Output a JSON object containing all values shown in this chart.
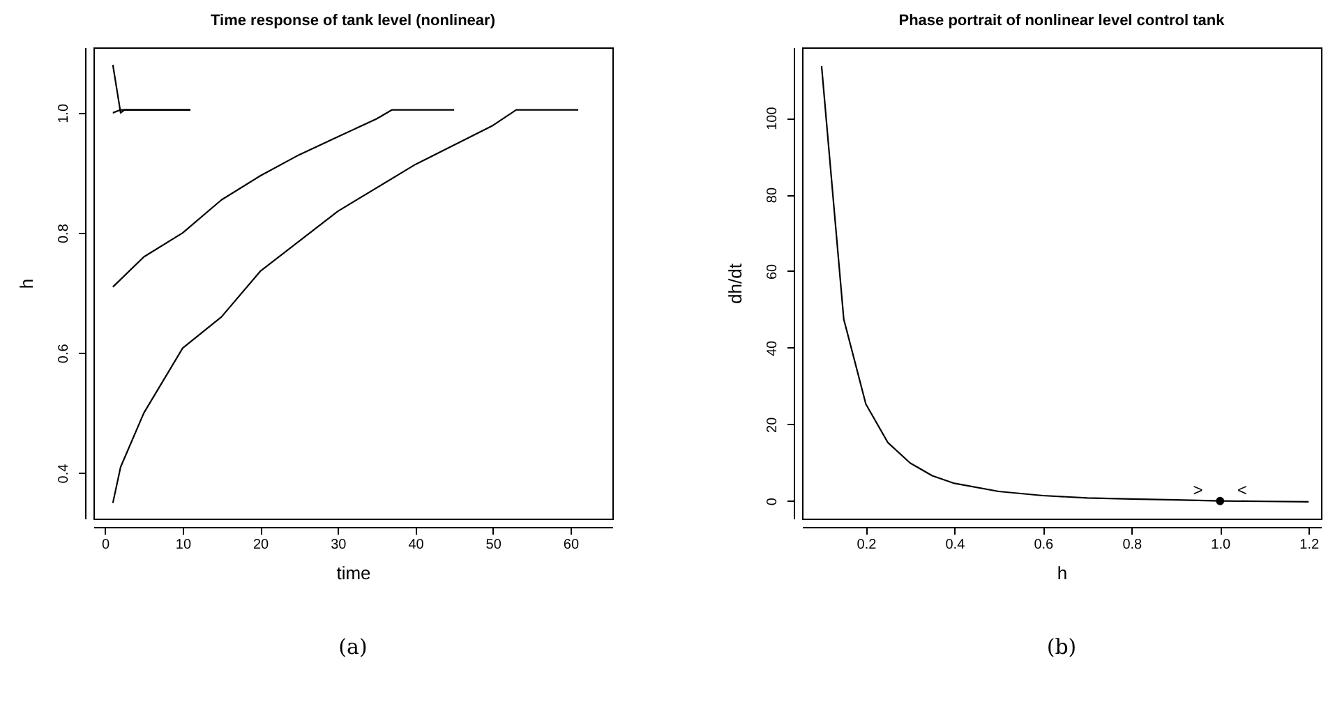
{
  "chart_data": [
    {
      "type": "line",
      "title": "Time response of tank level (nonlinear)",
      "xlabel": "time",
      "ylabel": "h",
      "xlim": [
        -1.5,
        65.4
      ],
      "ylim": [
        0.324,
        1.109
      ],
      "xticks": [
        0,
        10,
        20,
        30,
        40,
        50,
        60
      ],
      "yticks": [
        0.4,
        0.6,
        0.8,
        {
          "value": 1.0,
          "label": "1.0"
        }
      ],
      "grid": false,
      "marker": "none",
      "line_style": "solid",
      "series": [
        {
          "color": "#000000",
          "x": [
            1,
            2,
            2.5,
            11
          ],
          "values": [
            1.08,
            1.0,
            1.005,
            1.005
          ]
        },
        {
          "color": "#000000",
          "x": [
            1,
            2,
            11
          ],
          "values": [
            1.0,
            1.005,
            1.005
          ]
        },
        {
          "color": "#000000",
          "x": [
            1,
            5,
            10,
            15,
            20,
            25,
            30,
            35,
            37,
            45
          ],
          "values": [
            0.71,
            0.76,
            0.8,
            0.855,
            0.895,
            0.93,
            0.96,
            0.99,
            1.005,
            1.005
          ]
        },
        {
          "color": "#000000",
          "x": [
            1,
            2,
            5,
            10,
            15,
            20,
            30,
            40,
            50,
            53,
            61
          ],
          "values": [
            0.35,
            0.41,
            0.5,
            0.608,
            0.66,
            0.736,
            0.836,
            0.914,
            0.979,
            1.005,
            1.005
          ]
        }
      ],
      "annotations": [
        "(a)"
      ]
    },
    {
      "type": "line",
      "title": "Phase portrait of nonlinear level control tank",
      "xlabel": "h",
      "ylabel": "dh/dt",
      "xlim": [
        0.056,
        1.228
      ],
      "ylim": [
        -4.6,
        118.4
      ],
      "xticks": [
        0.2,
        0.4,
        0.6,
        0.8,
        {
          "value": 1.0,
          "label": "1.0"
        },
        1.2
      ],
      "yticks": [
        0,
        20,
        40,
        60,
        80,
        100
      ],
      "grid": false,
      "line_style": "solid",
      "series": [
        {
          "color": "#000000",
          "marker": "none",
          "x": [
            0.1,
            0.15,
            0.2,
            0.25,
            0.3,
            0.35,
            0.4,
            0.5,
            0.6,
            0.7,
            0.8,
            0.9,
            1.0,
            1.1,
            1.2
          ],
          "values": [
            113.5,
            47.5,
            25.3,
            15.2,
            9.9,
            6.6,
            4.6,
            2.5,
            1.4,
            0.8,
            0.5,
            0.3,
            0,
            -0.1,
            -0.2
          ]
        },
        {
          "type": "scatter",
          "color": "#000000",
          "marker": "circle",
          "x": [
            1.0
          ],
          "values": [
            0
          ]
        }
      ],
      "annotations": [
        {
          "text": ">",
          "x": 0.95,
          "y": 0
        },
        {
          "text": "<",
          "x": 1.05,
          "y": 0
        },
        "(b)"
      ]
    }
  ]
}
